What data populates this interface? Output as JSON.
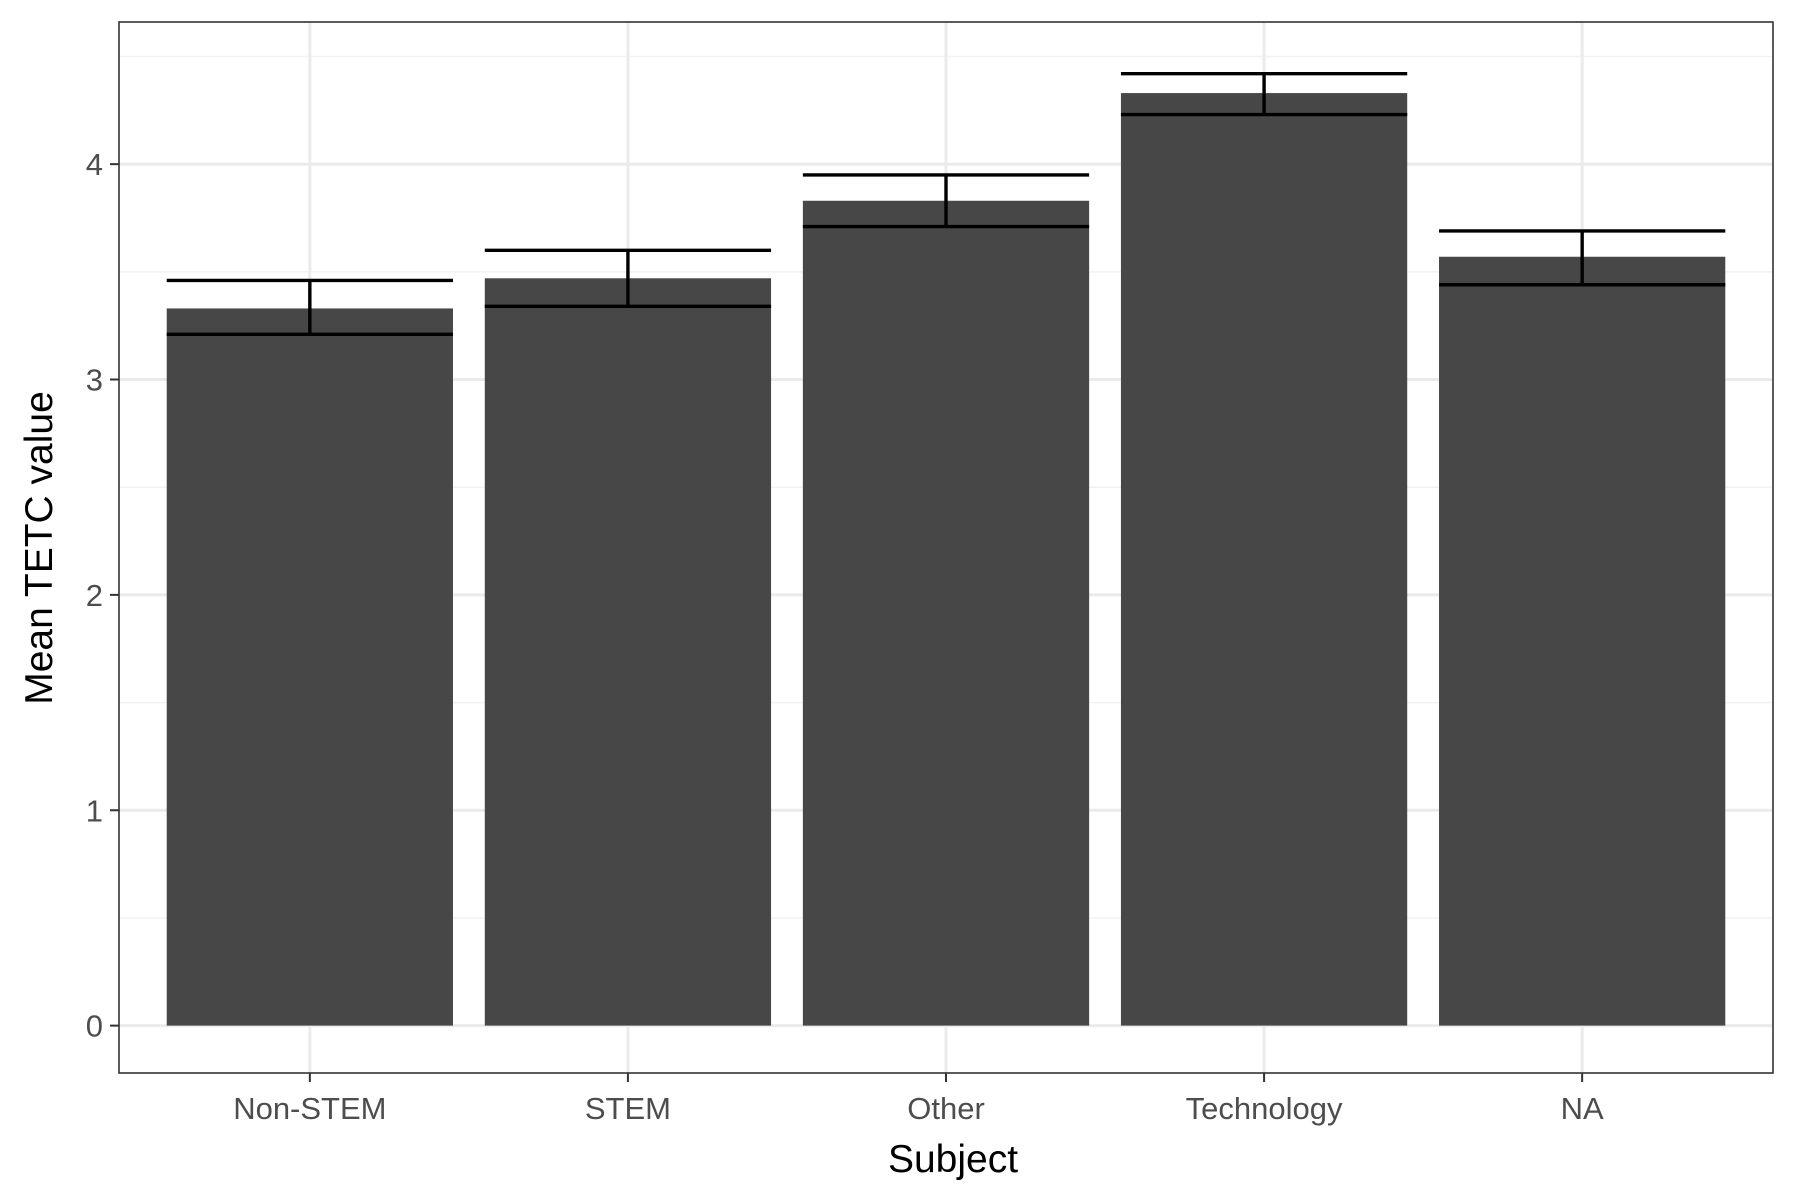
{
  "chart_data": {
    "type": "bar",
    "categories": [
      "Non-STEM",
      "STEM",
      "Other",
      "Technology",
      "NA"
    ],
    "values": [
      3.33,
      3.47,
      3.83,
      4.33,
      3.57
    ],
    "error_bars": {
      "lower": [
        3.21,
        3.34,
        3.71,
        4.23,
        3.44
      ],
      "upper": [
        3.46,
        3.6,
        3.95,
        4.42,
        3.69
      ]
    },
    "xlabel": "Subject",
    "ylabel": "Mean TETC value",
    "ylim": [
      -0.22,
      4.66
    ],
    "yticks": [
      0,
      1,
      2,
      3,
      4
    ],
    "grid": true,
    "colors": {
      "bar": "#474747",
      "errorbar": "#000000",
      "grid_major": "#ebebeb",
      "grid_minor": "#f2f2f2",
      "panel_border": "#333333"
    }
  }
}
